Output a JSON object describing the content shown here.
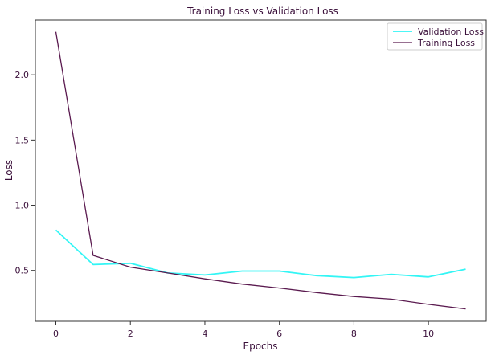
{
  "chart_data": {
    "type": "line",
    "title": "Training Loss vs Validation Loss",
    "xlabel": "Epochs",
    "ylabel": "Loss",
    "xlim": [
      -0.55,
      11.55
    ],
    "ylim": [
      0.11,
      2.42
    ],
    "xticks": [
      0,
      2,
      4,
      6,
      8,
      10
    ],
    "yticks": [
      0.5,
      1.0,
      1.5,
      2.0
    ],
    "ytick_labels": [
      "0.5",
      "1.0",
      "1.5",
      "2.0"
    ],
    "grid": false,
    "legend_position": "top-right",
    "x": [
      0,
      1,
      2,
      3,
      4,
      5,
      6,
      7,
      8,
      9,
      10,
      11
    ],
    "series": [
      {
        "name": "Validation Loss",
        "color": "#33f5f5",
        "values": [
          0.81,
          0.545,
          0.555,
          0.48,
          0.465,
          0.495,
          0.495,
          0.46,
          0.445,
          0.47,
          0.45,
          0.51
        ]
      },
      {
        "name": "Training Loss",
        "color": "#5a1a4f",
        "values": [
          2.33,
          0.615,
          0.525,
          0.48,
          0.435,
          0.395,
          0.365,
          0.33,
          0.3,
          0.28,
          0.24,
          0.205
        ]
      }
    ]
  }
}
